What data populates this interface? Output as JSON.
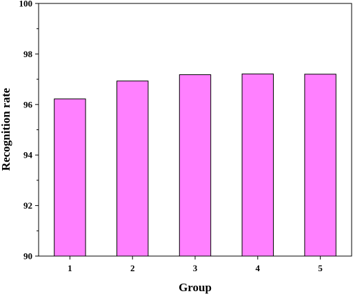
{
  "chart_data": {
    "type": "bar",
    "title": "",
    "xlabel": "Group",
    "ylabel": "Recognition rate",
    "categories": [
      "1",
      "2",
      "3",
      "4",
      "5"
    ],
    "values": [
      96.22,
      96.93,
      97.18,
      97.21,
      97.2
    ],
    "ylim": [
      90,
      100
    ],
    "yticks": [
      90,
      92,
      94,
      96,
      98,
      100
    ],
    "grid": false,
    "legend": "none",
    "bar_color": "#ff80ff",
    "bar_edge_color": "#000000"
  }
}
